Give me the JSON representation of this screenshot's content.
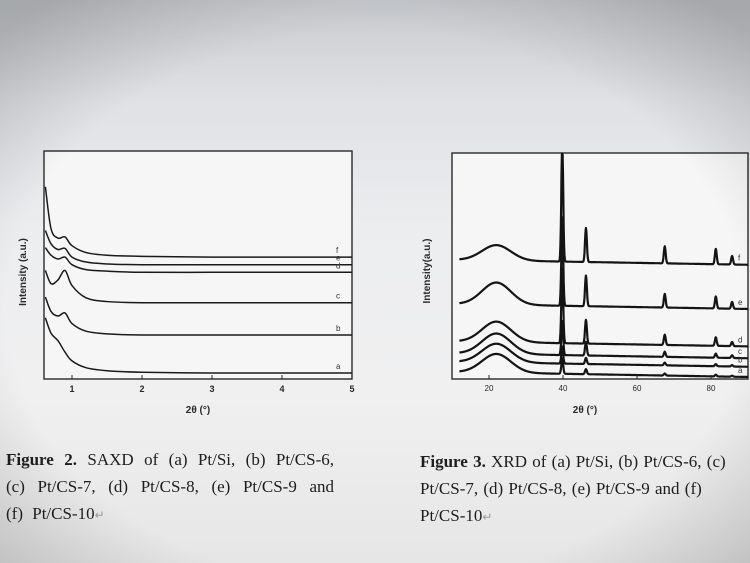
{
  "figure2": {
    "type": "line",
    "ylabel": "Intensity (a.u.)",
    "xlabel": "2θ (°)",
    "xlim": [
      0.6,
      5
    ],
    "x_ticks": [
      "1",
      "2",
      "3",
      "4",
      "5"
    ],
    "grid": false,
    "series_labels": [
      "a",
      "b",
      "c",
      "d",
      "e",
      "f"
    ],
    "caption": {
      "label": "Figure 2.",
      "text": "SAXD of (a) Pt/Si, (b) Pt/CS-6, (c) Pt/CS-7, (d) Pt/CS-8, (e) Pt/CS-9 and (f) Pt/CS-10"
    }
  },
  "figure3": {
    "type": "line",
    "ylabel": "Intensity(a.u.)",
    "xlabel": "2θ (°)",
    "xlim": [
      10,
      90
    ],
    "x_ticks": [
      "20",
      "40",
      "60",
      "80"
    ],
    "grid": false,
    "series_labels": [
      "a",
      "b",
      "c",
      "d",
      "e",
      "f"
    ],
    "peak_positions_2theta": [
      39.8,
      46.2,
      67.5,
      81.3,
      85.7
    ],
    "caption": {
      "label": "Figure 3.",
      "text": "XRD of (a) Pt/Si, (b) Pt/CS-6, (c) Pt/CS-7, (d) Pt/CS-8, (e) Pt/CS-9 and (f) Pt/CS-10"
    }
  },
  "chart_data": [
    {
      "type": "line",
      "xlabel": "2θ (°)",
      "ylabel": "Intensity (a.u.)",
      "xlim": [
        0.6,
        5
      ],
      "x": [
        0.62,
        0.7,
        0.8,
        0.9,
        1.0,
        1.2,
        1.5,
        2.0,
        3.0,
        4.0,
        5.0
      ],
      "series": [
        {
          "name": "a",
          "values": [
            1.45,
            1.05,
            0.85,
            0.55,
            0.32,
            0.14,
            0.06,
            0.02,
            0.0,
            0.0,
            0.0
          ]
        },
        {
          "name": "b",
          "values": [
            2.0,
            1.62,
            1.5,
            1.58,
            1.3,
            1.1,
            1.03,
            1.0,
            1.0,
            1.0,
            1.0
          ]
        },
        {
          "name": "c",
          "values": [
            2.7,
            2.35,
            2.45,
            2.7,
            2.3,
            1.98,
            1.88,
            1.85,
            1.85,
            1.85,
            1.85
          ]
        },
        {
          "name": "d",
          "values": [
            3.3,
            3.1,
            3.0,
            3.05,
            2.85,
            2.72,
            2.68,
            2.65,
            2.65,
            2.65,
            2.65
          ]
        },
        {
          "name": "e",
          "values": [
            3.75,
            3.4,
            3.25,
            3.28,
            3.05,
            2.92,
            2.87,
            2.85,
            2.85,
            2.85,
            2.85
          ]
        },
        {
          "name": "f",
          "values": [
            4.9,
            3.8,
            3.55,
            3.58,
            3.35,
            3.17,
            3.1,
            3.07,
            3.05,
            3.05,
            3.05
          ]
        }
      ]
    },
    {
      "type": "line",
      "xlabel": "2θ (°)",
      "ylabel": "Intensity(a.u.)",
      "xlim": [
        10,
        90
      ],
      "series": [
        {
          "name": "a",
          "background": 0.0,
          "hump_height": 0.55,
          "peaks": [
            0.45,
            0.15,
            0.06,
            0.05,
            0.03
          ]
        },
        {
          "name": "b",
          "background": 0.3,
          "hump_height": 0.55,
          "peaks": [
            0.5,
            0.18,
            0.08,
            0.06,
            0.04
          ]
        },
        {
          "name": "c",
          "background": 0.55,
          "hump_height": 0.6,
          "peaks": [
            1.0,
            0.4,
            0.15,
            0.12,
            0.08
          ]
        },
        {
          "name": "d",
          "background": 0.9,
          "hump_height": 0.6,
          "peaks": [
            2.2,
            0.7,
            0.3,
            0.25,
            0.12
          ]
        },
        {
          "name": "e",
          "background": 2.0,
          "hump_height": 0.65,
          "peaks": [
            2.6,
            0.9,
            0.4,
            0.35,
            0.2
          ]
        },
        {
          "name": "f",
          "background": 3.3,
          "hump_height": 0.45,
          "peaks": [
            3.6,
            1.0,
            0.5,
            0.45,
            0.25
          ]
        }
      ]
    }
  ]
}
